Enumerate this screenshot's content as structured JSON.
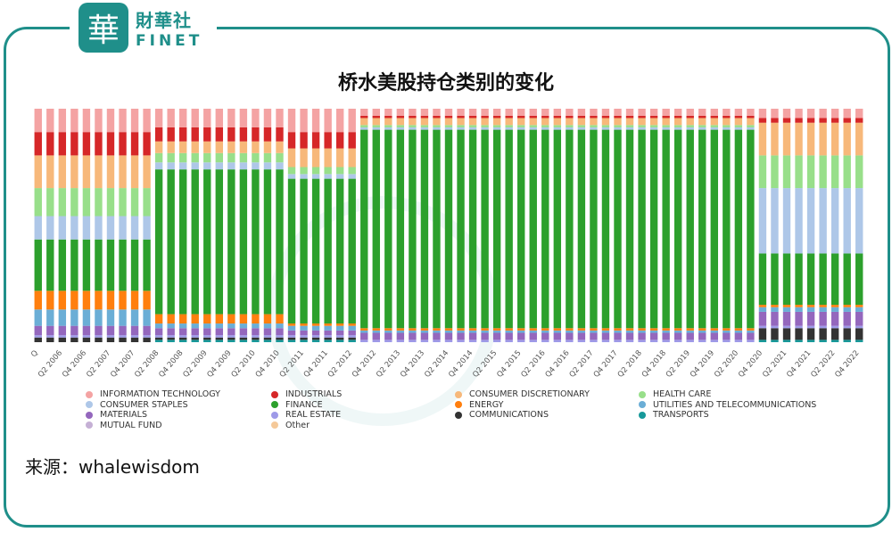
{
  "logo": {
    "cn": "財華社",
    "en": "FINET",
    "seal": "華"
  },
  "source": {
    "label": "来源：",
    "value": "whalewisdom"
  },
  "chart_data": {
    "type": "bar",
    "stacked": true,
    "normalized": true,
    "title": "桥水美股持仓类别的变化",
    "ylabel": "",
    "xlabel": "",
    "ylim": [
      0,
      100
    ],
    "legend_position": "bottom",
    "x_tick_labels": [
      "Q",
      "Q2 2006",
      "Q4 2006",
      "Q2 2007",
      "Q4 2007",
      "Q2 2008",
      "Q4 2008",
      "Q2 2009",
      "Q4 2009",
      "Q2 2010",
      "Q4 2010",
      "Q2 2011",
      "Q4 2011",
      "Q2 2012",
      "Q4 2012",
      "Q2 2013",
      "Q4 2013",
      "Q2 2014",
      "Q4 2014",
      "Q2 2015",
      "Q4 2015",
      "Q2 2016",
      "Q4 2016",
      "Q2 2017",
      "Q4 2017",
      "Q2 2018",
      "Q4 2018",
      "Q2 2019",
      "Q4 2019",
      "Q2 2020",
      "Q4 2020",
      "Q2 2021",
      "Q4 2021",
      "Q2 2022",
      "Q4 2022"
    ],
    "num_bars": 69,
    "series": [
      {
        "name": "INFORMATION TECHNOLOGY",
        "color": "#f4a3a3"
      },
      {
        "name": "INDUSTRIALS",
        "color": "#d62728"
      },
      {
        "name": "CONSUMER DISCRETIONARY",
        "color": "#f7b87a"
      },
      {
        "name": "HEALTH CARE",
        "color": "#98df8a"
      },
      {
        "name": "CONSUMER STAPLES",
        "color": "#aec7e8"
      },
      {
        "name": "FINANCE",
        "color": "#2ca02c"
      },
      {
        "name": "ENERGY",
        "color": "#ff7f0e"
      },
      {
        "name": "UTILITIES AND TELECOMMUNICATIONS",
        "color": "#6baed6"
      },
      {
        "name": "MATERIALS",
        "color": "#9467bd"
      },
      {
        "name": "REAL ESTATE",
        "color": "#9e9ae8"
      },
      {
        "name": "COMMUNICATIONS",
        "color": "#333333"
      },
      {
        "name": "TRANSPORTS",
        "color": "#17999a"
      },
      {
        "name": "MUTUAL FUND",
        "color": "#c5b0d5"
      },
      {
        "name": "Other",
        "color": "#f5c999"
      }
    ],
    "stack_order": [
      "TRANSPORTS",
      "COMMUNICATIONS",
      "MUTUAL FUND",
      "REAL ESTATE",
      "MATERIALS",
      "UTILITIES AND TELECOMMUNICATIONS",
      "ENERGY",
      "FINANCE",
      "CONSUMER STAPLES",
      "HEALTH CARE",
      "CONSUMER DISCRETIONARY",
      "Other",
      "INDUSTRIALS",
      "INFORMATION TECHNOLOGY"
    ],
    "phases": [
      {
        "bars": [
          0,
          9
        ],
        "composition": {
          "INFORMATION TECHNOLOGY": 10,
          "INDUSTRIALS": 10,
          "CONSUMER DISCRETIONARY": 14,
          "HEALTH CARE": 12,
          "CONSUMER STAPLES": 10,
          "FINANCE": 22,
          "ENERGY": 8,
          "UTILITIES AND TELECOMMUNICATIONS": 7,
          "MATERIALS": 4,
          "REAL ESTATE": 1,
          "COMMUNICATIONS": 2
        }
      },
      {
        "bars": [
          10,
          20
        ],
        "composition": {
          "INFORMATION TECHNOLOGY": 8,
          "INDUSTRIALS": 6,
          "CONSUMER DISCRETIONARY": 5,
          "HEALTH CARE": 4,
          "CONSUMER STAPLES": 3,
          "FINANCE": 62,
          "ENERGY": 4,
          "UTILITIES AND TELECOMMUNICATIONS": 2,
          "MATERIALS": 3,
          "REAL ESTATE": 1,
          "COMMUNICATIONS": 1,
          "TRANSPORTS": 1
        }
      },
      {
        "bars": [
          21,
          26
        ],
        "composition": {
          "INFORMATION TECHNOLOGY": 10,
          "INDUSTRIALS": 7,
          "CONSUMER DISCRETIONARY": 8,
          "HEALTH CARE": 3,
          "CONSUMER STAPLES": 2,
          "FINANCE": 62,
          "ENERGY": 1,
          "UTILITIES AND TELECOMMUNICATIONS": 2,
          "MATERIALS": 2,
          "REAL ESTATE": 1,
          "COMMUNICATIONS": 1,
          "TRANSPORTS": 1
        }
      },
      {
        "bars": [
          27,
          59
        ],
        "composition": {
          "INFORMATION TECHNOLOGY": 3,
          "INDUSTRIALS": 1,
          "CONSUMER DISCRETIONARY": 3,
          "HEALTH CARE": 1,
          "CONSUMER STAPLES": 1,
          "FINANCE": 85,
          "ENERGY": 1,
          "UTILITIES AND TELECOMMUNICATIONS": 1,
          "MATERIALS": 3,
          "REAL ESTATE": 1
        }
      },
      {
        "bars": [
          60,
          68
        ],
        "composition": {
          "INFORMATION TECHNOLOGY": 4,
          "INDUSTRIALS": 2,
          "CONSUMER DISCRETIONARY": 14,
          "HEALTH CARE": 14,
          "CONSUMER STAPLES": 28,
          "FINANCE": 22,
          "ENERGY": 1,
          "UTILITIES AND TELECOMMUNICATIONS": 2,
          "MATERIALS": 6,
          "REAL ESTATE": 1,
          "COMMUNICATIONS": 5,
          "TRANSPORTS": 1
        }
      }
    ]
  }
}
